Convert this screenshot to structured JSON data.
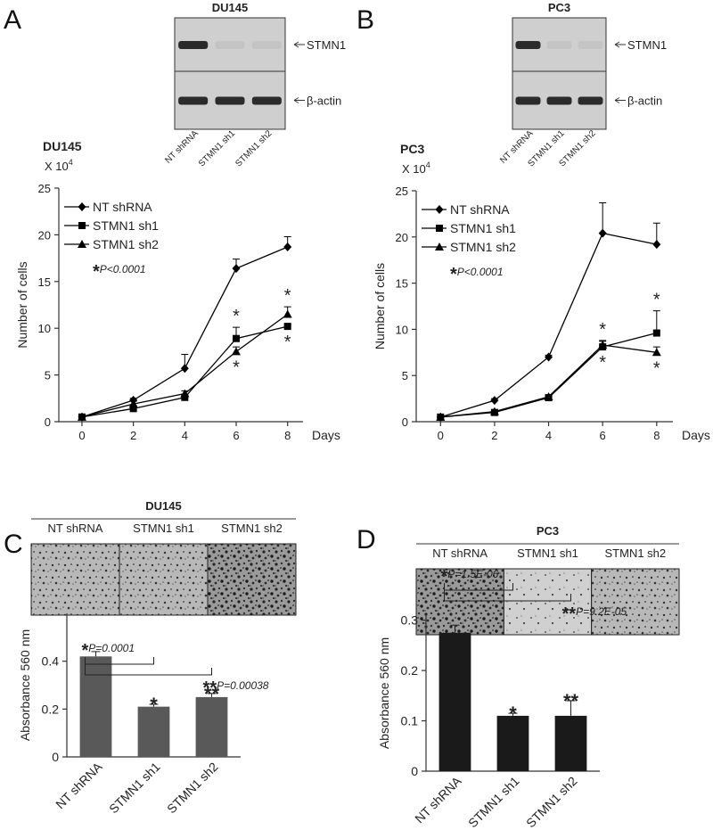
{
  "panels": [
    {
      "letter": "A",
      "blot_title": "DU145",
      "lanes": [
        "NT shRNA",
        "STMN1 sh1",
        "STMN1 sh2"
      ],
      "bands": [
        "STMN1",
        "β-actin"
      ]
    },
    {
      "letter": "B",
      "blot_title": "PC3",
      "lanes": [
        "NT shRNA",
        "STMN1 sh1",
        "STMN1 sh2"
      ],
      "bands": [
        "STMN1",
        "β-actin"
      ]
    },
    {
      "letter": "C",
      "image_title": "DU145",
      "lanes": [
        "NT shRNA",
        "STMN1 sh1",
        "STMN1 sh2"
      ]
    },
    {
      "letter": "D",
      "image_title": "PC3",
      "lanes": [
        "NT shRNA",
        "STMN1 sh1",
        "STMN1 sh2"
      ]
    }
  ],
  "chart_data": [
    {
      "type": "line",
      "title": "DU145",
      "y_multiplier": "X 10",
      "y_multiplier_exponent": "4",
      "ylabel": "Number of cells",
      "xlabel": "Days",
      "x": [
        0,
        2,
        4,
        6,
        8
      ],
      "xlim": [
        -0.9,
        8.6
      ],
      "xticks": [
        0,
        2,
        4,
        6,
        8
      ],
      "ylim": [
        0,
        25
      ],
      "yticks": [
        0,
        5,
        10,
        15,
        20,
        25
      ],
      "legend": "upper left",
      "series": [
        {
          "name": "NT shRNA",
          "color": "#000000",
          "marker": "diamond",
          "values": [
            0.5,
            2.3,
            5.7,
            16.4,
            18.7
          ],
          "errors": [
            0,
            0.2,
            1.5,
            1.0,
            1.1
          ]
        },
        {
          "name": "STMN1 sh1",
          "color": "#000000",
          "marker": "square",
          "values": [
            0.5,
            1.4,
            2.6,
            8.9,
            10.2
          ],
          "errors": [
            0,
            0.2,
            0.2,
            1.2,
            0.2
          ]
        },
        {
          "name": "STMN1 sh2",
          "color": "#000000",
          "marker": "triangle",
          "values": [
            0.5,
            1.9,
            3.0,
            7.5,
            11.5
          ],
          "errors": [
            0,
            0.3,
            0.3,
            0.5,
            0.8
          ]
        }
      ],
      "note": {
        "stars": "*",
        "text": "P<0.0001"
      },
      "annotations": [
        {
          "text": "*",
          "series": 1,
          "index": 3
        },
        {
          "text": "*",
          "series": 2,
          "index": 3
        },
        {
          "text": "*",
          "series": 1,
          "index": 4
        },
        {
          "text": "*",
          "series": 2,
          "index": 4
        }
      ]
    },
    {
      "type": "line",
      "title": "PC3",
      "y_multiplier": "X 10",
      "y_multiplier_exponent": "4",
      "ylabel": "Number of cells",
      "xlabel": "Days",
      "x": [
        0,
        2,
        4,
        6,
        8
      ],
      "xlim": [
        -0.9,
        8.6
      ],
      "xticks": [
        0,
        2,
        4,
        6,
        8
      ],
      "ylim": [
        0,
        25
      ],
      "yticks": [
        0,
        5,
        10,
        15,
        20,
        25
      ],
      "legend": "upper left",
      "series": [
        {
          "name": "NT shRNA",
          "color": "#000000",
          "marker": "diamond",
          "values": [
            0.5,
            2.3,
            7.0,
            20.4,
            19.2
          ],
          "errors": [
            0,
            0.2,
            0.2,
            3.3,
            2.3
          ]
        },
        {
          "name": "STMN1 sh1",
          "color": "#000000",
          "marker": "square",
          "values": [
            0.5,
            1.0,
            2.6,
            8.1,
            9.6
          ],
          "errors": [
            0,
            0.1,
            0.2,
            0.6,
            2.4
          ]
        },
        {
          "name": "STMN1 sh2",
          "color": "#000000",
          "marker": "triangle",
          "values": [
            0.5,
            1.1,
            2.7,
            8.3,
            7.5
          ],
          "errors": [
            0,
            0.1,
            0.2,
            0.5,
            0.6
          ]
        }
      ],
      "note": {
        "stars": "*",
        "text": "P<0.0001"
      },
      "annotations": [
        {
          "text": "*",
          "series": 1,
          "index": 3
        },
        {
          "text": "*",
          "series": 2,
          "index": 3
        },
        {
          "text": "*",
          "series": 1,
          "index": 4
        },
        {
          "text": "*",
          "series": 2,
          "index": 4
        }
      ]
    },
    {
      "type": "bar",
      "ylabel": "Absorbance 560 nm",
      "categories": [
        "NT shRNA",
        "STMN1 sh1",
        "STMN1 sh2"
      ],
      "values": [
        0.42,
        0.21,
        0.25
      ],
      "errors": [
        0.02,
        0.01,
        0.015
      ],
      "color": "#595959",
      "ylim": [
        0,
        0.6
      ],
      "yticks": [
        0,
        0.2,
        0.4
      ],
      "bar_annotations": [
        null,
        "*",
        "**"
      ],
      "comparisons": [
        {
          "from": 0,
          "to": 1,
          "stars": "*",
          "text": "P=0.0001"
        },
        {
          "from": 0,
          "to": 2,
          "stars": "**",
          "text": "P=0.00038"
        }
      ]
    },
    {
      "type": "bar",
      "ylabel": "Absorbance 560 nm",
      "categories": [
        "NT shRNA",
        "STMN1 sh1",
        "STMN1 sh2"
      ],
      "values": [
        0.275,
        0.11,
        0.11
      ],
      "errors": [
        0.015,
        0.005,
        0.03
      ],
      "color": "#1a1a1a",
      "ylim": [
        0,
        0.31
      ],
      "yticks": [
        0,
        0.1,
        0.2,
        0.3
      ],
      "bar_annotations": [
        null,
        "*",
        "**"
      ],
      "comparisons": [
        {
          "from": 0,
          "to": 1,
          "stars": "*",
          "text": "P=1.5E-06"
        },
        {
          "from": 0,
          "to": 2,
          "stars": "**",
          "text": "P=9.2E-05"
        }
      ]
    }
  ]
}
